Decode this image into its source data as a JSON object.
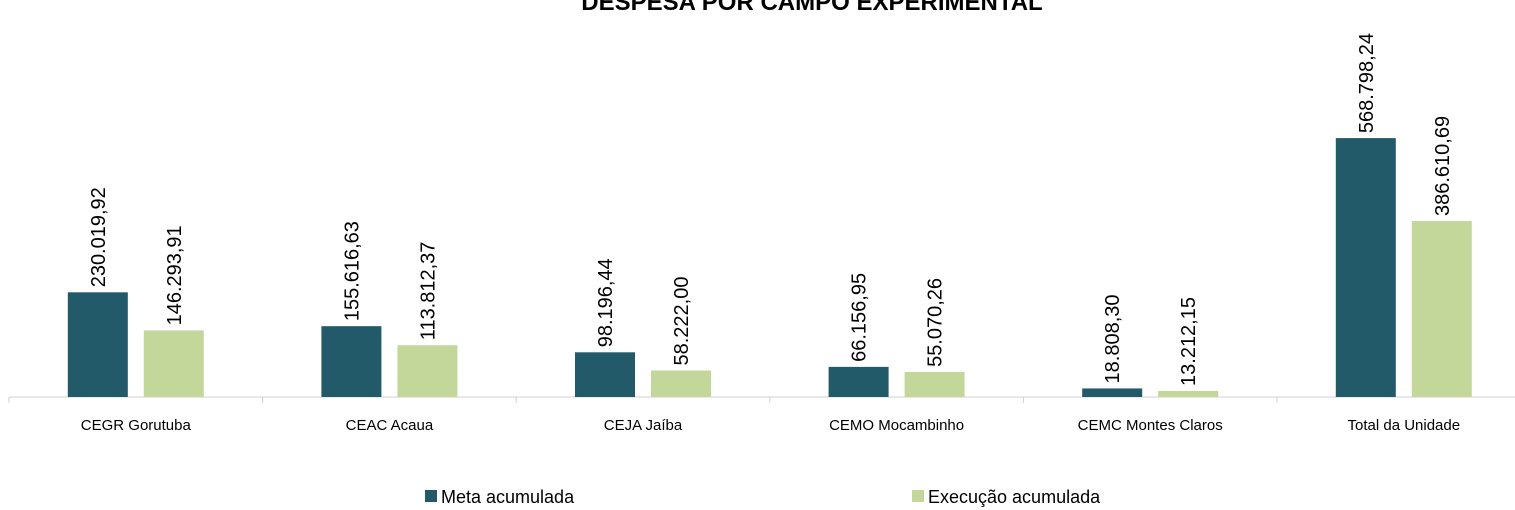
{
  "chart_data": {
    "type": "bar",
    "title": "DESPESA POR CAMPO EXPERIMENTAL",
    "categories": [
      "CEGR Gorutuba",
      "CEAC Acaua",
      "CEJA Jaíba",
      "CEMO Mocambinho",
      "CEMC Montes Claros",
      "Total da Unidade"
    ],
    "series": [
      {
        "name": "Meta acumulada",
        "color": "#235a6a",
        "values": [
          230019.92,
          155616.63,
          98196.44,
          66156.95,
          18808.3,
          568798.24
        ],
        "value_labels": [
          "230.019,92",
          "155.616,63",
          "98.196,44",
          "66.156,95",
          "18.808,30",
          "568.798,24"
        ]
      },
      {
        "name": "Execução acumulada",
        "color": "#c4d79b",
        "values": [
          146293.91,
          113812.37,
          58222.0,
          55070.26,
          13212.15,
          386610.69
        ],
        "value_labels": [
          "146.293,91",
          "113.812,37",
          "58.222,00",
          "55.070,26",
          "13.212,15",
          "386.610,69"
        ]
      }
    ],
    "ylim": [
      0,
      700000
    ]
  }
}
